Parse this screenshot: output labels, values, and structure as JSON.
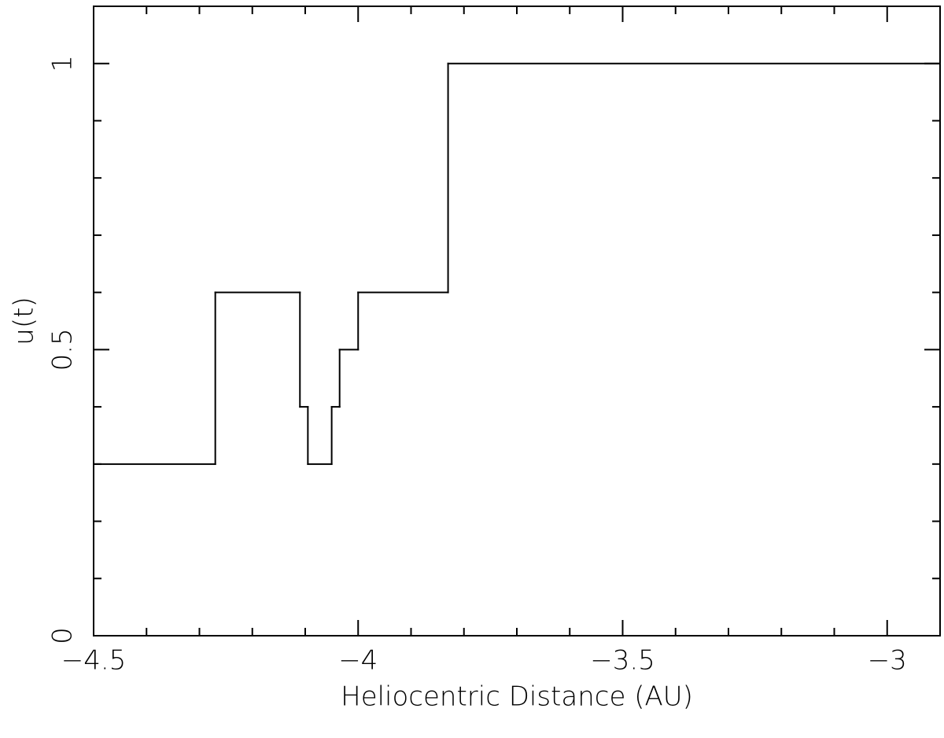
{
  "chart_data": {
    "type": "step",
    "x_label": "Heliocentric Distance (AU)",
    "y_label": "u(t)",
    "x": [
      -4.5,
      -4.27,
      -4.11,
      -4.095,
      -4.05,
      -4.035,
      -4.0,
      -3.83,
      -2.9
    ],
    "values": [
      0.3,
      0.6,
      0.4,
      0.3,
      0.4,
      0.5,
      0.6,
      1.0,
      1.0
    ],
    "step": "post",
    "color": "#000000",
    "xlim": [
      -4.5,
      -2.9
    ],
    "ylim": [
      0,
      1.1
    ],
    "xticks": [
      {
        "value": -4.5,
        "label": "−4.5"
      },
      {
        "value": -4,
        "label": "−4"
      },
      {
        "value": -3.5,
        "label": "−3.5"
      },
      {
        "value": -3,
        "label": "−3"
      }
    ],
    "xticks_minor": [
      -4.4,
      -4.3,
      -4.2,
      -4.1,
      -3.9,
      -3.8,
      -3.7,
      -3.6,
      -3.4,
      -3.3,
      -3.2,
      -3.1
    ],
    "yticks": [
      0,
      0.5,
      1
    ],
    "yticks_minor": [
      0.1,
      0.2,
      0.3,
      0.4,
      0.6,
      0.7,
      0.8,
      0.9
    ],
    "mirror_ticks": true,
    "grid": false
  }
}
